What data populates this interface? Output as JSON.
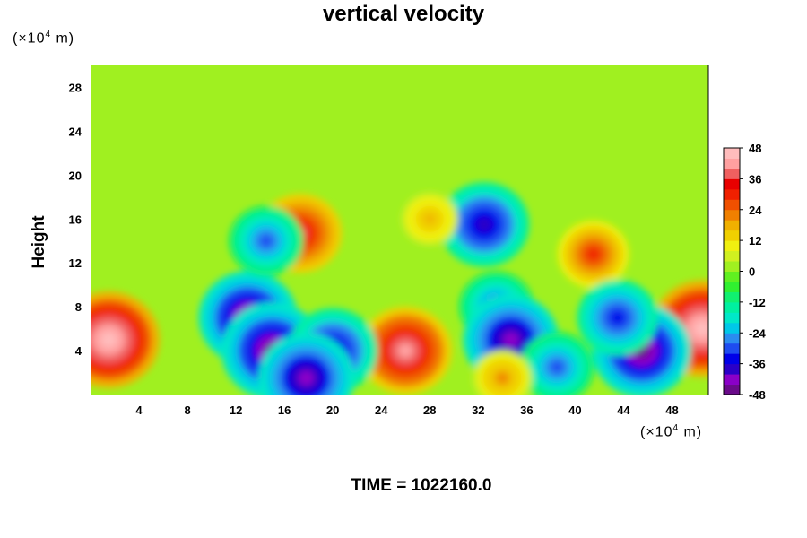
{
  "chart_data": {
    "type": "heatmap",
    "title": "vertical velocity",
    "ylabel": "Height",
    "xlabel": "",
    "x_unit": {
      "prefix": "(×10",
      "exp": "4",
      "suffix": " m)"
    },
    "y_unit": {
      "prefix": "(×10",
      "exp": "4",
      "suffix": " m)"
    },
    "footer": {
      "label": "TIME = ",
      "value": "1022160.0"
    },
    "xlim": [
      0,
      51
    ],
    "ylim": [
      0,
      30
    ],
    "x_ticks": [
      4,
      8,
      12,
      16,
      20,
      24,
      28,
      32,
      36,
      40,
      44,
      48
    ],
    "y_ticks": [
      4,
      8,
      12,
      16,
      20,
      24,
      28
    ],
    "colorbar": {
      "range": [
        -48,
        48
      ],
      "ticks": [
        48,
        36,
        24,
        12,
        0,
        -12,
        -24,
        -36,
        -48
      ],
      "colors": [
        "#6a0a8a",
        "#8a00c8",
        "#2a00c8",
        "#0000e8",
        "#1e4cf0",
        "#2a8cf0",
        "#00c8e8",
        "#00e8c8",
        "#00f0a0",
        "#10f070",
        "#30f030",
        "#60f020",
        "#a0f020",
        "#d0f020",
        "#f0f010",
        "#f0d000",
        "#f0b000",
        "#f08000",
        "#f05000",
        "#f02000",
        "#e80000",
        "#f06060",
        "#ffa0a0",
        "#ffbcbc"
      ]
    },
    "features": [
      {
        "x": 1.5,
        "y": 5,
        "value": 50
      },
      {
        "x": 50.5,
        "y": 6,
        "value": 50
      },
      {
        "x": 26,
        "y": 4,
        "value": 42
      },
      {
        "x": 17.3,
        "y": 14.7,
        "value": 36
      },
      {
        "x": 41.5,
        "y": 12.8,
        "value": 28
      },
      {
        "x": 13,
        "y": 7,
        "value": -46
      },
      {
        "x": 15,
        "y": 4,
        "value": -48
      },
      {
        "x": 20,
        "y": 4,
        "value": -40
      },
      {
        "x": 17.8,
        "y": 1.5,
        "value": -44
      },
      {
        "x": 14.5,
        "y": 14,
        "value": -30
      },
      {
        "x": 32.5,
        "y": 15.5,
        "value": -40
      },
      {
        "x": 33.5,
        "y": 8,
        "value": -30
      },
      {
        "x": 34.7,
        "y": 5,
        "value": -44
      },
      {
        "x": 45.5,
        "y": 4,
        "value": -46
      },
      {
        "x": 43.5,
        "y": 7,
        "value": -34
      },
      {
        "x": 38.5,
        "y": 2.5,
        "value": -30
      },
      {
        "x": 34,
        "y": 1.5,
        "value": 20
      },
      {
        "x": 28,
        "y": 16,
        "value": 18
      }
    ]
  }
}
